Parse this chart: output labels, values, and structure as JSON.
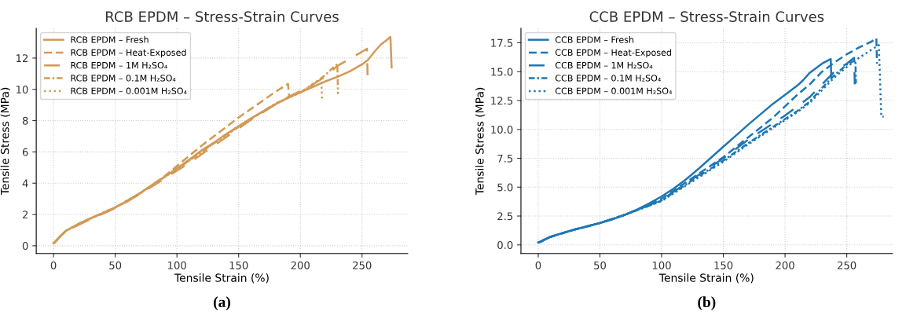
{
  "chart_data": [
    {
      "type": "line",
      "title": "RCB EPDM – Stress-Strain Curves",
      "xlabel": "Tensile Strain (%)",
      "ylabel": "Tensile Stress (MPa)",
      "xlim": [
        -14,
        287
      ],
      "ylim": [
        -0.5,
        13.9
      ],
      "xticks": [
        0,
        50,
        100,
        150,
        200,
        250
      ],
      "yticks": [
        0,
        2,
        4,
        6,
        8,
        10,
        12
      ],
      "grid": true,
      "legend": "top left",
      "marker": "none",
      "annotations": [
        "(a)"
      ],
      "series": [
        {
          "name": "RCB EPDM – Fresh",
          "color": "#d29a55",
          "line_style": "solid",
          "x": [
            0,
            2,
            5,
            10,
            20,
            30,
            40,
            50,
            60,
            70,
            80,
            90,
            100,
            110,
            120,
            130,
            140,
            150,
            160,
            170,
            180,
            190,
            200,
            210,
            220,
            230,
            240,
            250,
            255,
            260,
            265,
            270,
            273,
            274
          ],
          "values": [
            0.15,
            0.3,
            0.6,
            0.95,
            1.4,
            1.75,
            2.1,
            2.45,
            2.85,
            3.35,
            3.9,
            4.4,
            4.95,
            5.5,
            6.1,
            6.6,
            7.15,
            7.65,
            8.15,
            8.6,
            9.05,
            9.45,
            9.8,
            10.15,
            10.5,
            10.8,
            11.15,
            11.6,
            11.9,
            12.4,
            12.85,
            13.15,
            13.35,
            11.4
          ]
        },
        {
          "name": "RCB EPDM – Heat-Exposed",
          "color": "#d29a55",
          "line_style": "dashed",
          "x": [
            0,
            10,
            30,
            50,
            70,
            90,
            100,
            110,
            120,
            130,
            140,
            150,
            160,
            170,
            180,
            190,
            191
          ],
          "values": [
            0.15,
            0.95,
            1.75,
            2.45,
            3.35,
            4.45,
            5.1,
            5.75,
            6.4,
            7.0,
            7.6,
            8.2,
            8.75,
            9.3,
            9.85,
            10.35,
            9.5
          ]
        },
        {
          "name": "RCB EPDM – 1M H₂SO₄",
          "color": "#d29a55",
          "line_style": "longdash",
          "x": [
            0,
            10,
            30,
            50,
            70,
            90,
            100,
            110,
            120,
            130,
            140,
            150,
            160,
            170,
            180,
            190,
            200,
            210,
            220,
            230,
            240,
            250,
            254,
            254.5
          ],
          "values": [
            0.15,
            0.95,
            1.7,
            2.4,
            3.3,
            4.3,
            4.8,
            5.3,
            5.85,
            6.4,
            6.95,
            7.5,
            8.05,
            8.55,
            9.05,
            9.5,
            9.9,
            10.3,
            10.8,
            11.5,
            11.95,
            12.4,
            12.6,
            10.9
          ]
        },
        {
          "name": "RCB EPDM – 0.1M H₂SO₄",
          "color": "#d29a55",
          "line_style": "dashdot",
          "x": [
            0,
            10,
            30,
            50,
            70,
            90,
            100,
            120,
            140,
            160,
            180,
            200,
            210,
            220,
            228,
            230,
            230.5
          ],
          "values": [
            0.15,
            0.95,
            1.75,
            2.45,
            3.35,
            4.4,
            4.9,
            6.0,
            7.1,
            8.1,
            9.1,
            9.8,
            10.3,
            10.9,
            11.5,
            11.6,
            9.7
          ]
        },
        {
          "name": "RCB EPDM – 0.001M H₂SO₄",
          "color": "#d29a55",
          "line_style": "dotted",
          "x": [
            0,
            10,
            30,
            50,
            70,
            90,
            100,
            120,
            140,
            160,
            180,
            200,
            210,
            217,
            217.5
          ],
          "values": [
            0.15,
            0.95,
            1.75,
            2.45,
            3.35,
            4.4,
            4.9,
            6.0,
            7.1,
            8.1,
            9.1,
            9.8,
            10.35,
            10.7,
            9.4
          ]
        }
      ]
    },
    {
      "type": "line",
      "title": "CCB EPDM – Stress-Strain Curves",
      "xlabel": "Tensile Strain (%)",
      "ylabel": "Tensile Stress (MPa)",
      "xlim": [
        -14,
        287
      ],
      "ylim": [
        -0.75,
        18.75
      ],
      "xticks": [
        0,
        50,
        100,
        150,
        200,
        250
      ],
      "yticks": [
        {
          "value": 0,
          "label": "0.0"
        },
        {
          "value": 2.5,
          "label": "2.5"
        },
        {
          "value": 5,
          "label": "5.0"
        },
        {
          "value": 7.5,
          "label": "7.5"
        },
        {
          "value": 10,
          "label": "10.0"
        },
        {
          "value": 12.5,
          "label": "12.5"
        },
        {
          "value": 15,
          "label": "15.0"
        },
        {
          "value": 17.5,
          "label": "17.5"
        }
      ],
      "grid": true,
      "legend": "top left",
      "marker": "none",
      "annotations": [
        "(b)"
      ],
      "series": [
        {
          "name": "CCB EPDM – Fresh",
          "color": "#1f77b4",
          "line_style": "solid",
          "x": [
            0,
            2,
            5,
            10,
            20,
            30,
            40,
            50,
            60,
            70,
            80,
            90,
            100,
            110,
            120,
            130,
            140,
            150,
            160,
            170,
            180,
            190,
            200,
            210,
            215,
            220,
            230,
            237,
            237.5
          ],
          "values": [
            0.2,
            0.25,
            0.45,
            0.7,
            1.05,
            1.35,
            1.6,
            1.9,
            2.2,
            2.6,
            3.05,
            3.6,
            4.2,
            4.9,
            5.7,
            6.6,
            7.55,
            8.5,
            9.45,
            10.4,
            11.3,
            12.2,
            13.0,
            13.8,
            14.3,
            14.9,
            15.7,
            16.1,
            14.5
          ]
        },
        {
          "name": "CCB EPDM – Heat-Exposed",
          "color": "#1f77b4",
          "line_style": "dashed",
          "x": [
            0,
            10,
            30,
            50,
            70,
            90,
            100,
            125,
            150,
            170,
            190,
            200,
            210,
            220,
            230,
            240,
            250,
            260,
            270,
            274,
            274.5
          ],
          "values": [
            0.2,
            0.7,
            1.35,
            1.9,
            2.6,
            3.5,
            4.0,
            5.8,
            7.6,
            9.3,
            11.0,
            12.0,
            13.0,
            13.9,
            15.0,
            15.8,
            16.5,
            17.1,
            17.6,
            17.9,
            15.7
          ]
        },
        {
          "name": "CCB EPDM – 1M H₂SO₄",
          "color": "#1f77b4",
          "line_style": "longdash",
          "x": [
            0,
            10,
            30,
            50,
            70,
            90,
            100,
            125,
            150,
            170,
            190,
            200,
            210,
            220,
            230,
            240,
            250,
            256,
            256.5
          ],
          "values": [
            0.2,
            0.7,
            1.35,
            1.9,
            2.6,
            3.45,
            3.9,
            5.7,
            7.5,
            9.1,
            10.5,
            11.2,
            12.0,
            12.8,
            13.9,
            15.0,
            15.7,
            16.2,
            13.9
          ]
        },
        {
          "name": "CCB EPDM – 0.1M H₂SO₄",
          "color": "#1f77b4",
          "line_style": "dashdot",
          "x": [
            0,
            10,
            30,
            50,
            70,
            90,
            100,
            125,
            150,
            170,
            190,
            200,
            210,
            220,
            230,
            240,
            250,
            257,
            257.5
          ],
          "values": [
            0.2,
            0.7,
            1.35,
            1.9,
            2.6,
            3.4,
            3.85,
            5.6,
            7.3,
            8.8,
            10.2,
            10.9,
            11.6,
            12.4,
            13.6,
            14.7,
            15.6,
            16.0,
            14.0
          ]
        },
        {
          "name": "CCB EPDM – 0.001M H₂SO₄",
          "color": "#1f77b4",
          "line_style": "dotted",
          "x": [
            0,
            10,
            30,
            50,
            70,
            90,
            100,
            125,
            150,
            170,
            190,
            200,
            210,
            220,
            230,
            240,
            250,
            260,
            270,
            276,
            277,
            278,
            280
          ],
          "values": [
            0.2,
            0.7,
            1.35,
            1.9,
            2.6,
            3.4,
            3.8,
            5.5,
            7.2,
            8.7,
            10.1,
            10.8,
            11.5,
            12.3,
            13.4,
            14.5,
            15.4,
            16.2,
            16.9,
            17.3,
            14.2,
            11.1,
            11.1
          ]
        }
      ]
    }
  ]
}
